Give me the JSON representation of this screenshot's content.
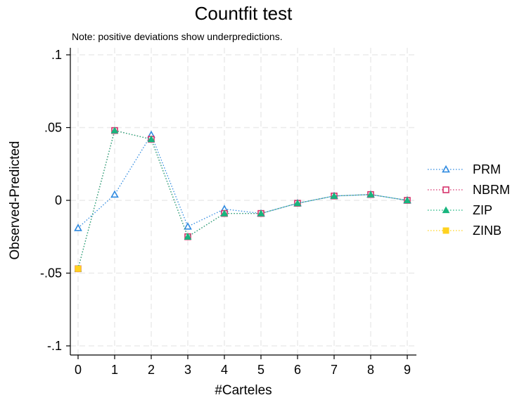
{
  "chart_data": {
    "type": "line",
    "title": "Countfit test",
    "note": "Note: positive deviations show underpredictions.",
    "xlabel": "#Carteles",
    "ylabel": "Observed-Predicted",
    "xlim": [
      0,
      9
    ],
    "ylim": [
      -0.1,
      0.1
    ],
    "x_ticks": [
      {
        "v": 0,
        "label": "0"
      },
      {
        "v": 1,
        "label": "1"
      },
      {
        "v": 2,
        "label": "2"
      },
      {
        "v": 3,
        "label": "3"
      },
      {
        "v": 4,
        "label": "4"
      },
      {
        "v": 5,
        "label": "5"
      },
      {
        "v": 6,
        "label": "6"
      },
      {
        "v": 7,
        "label": "7"
      },
      {
        "v": 8,
        "label": "8"
      },
      {
        "v": 9,
        "label": "9"
      }
    ],
    "y_ticks": [
      {
        "v": 0.1,
        "label": ".1"
      },
      {
        "v": 0.05,
        "label": ".05"
      },
      {
        "v": 0,
        "label": "0"
      },
      {
        "v": -0.05,
        "label": "-.05"
      },
      {
        "v": -0.1,
        "label": "-.1"
      }
    ],
    "grid": true,
    "legend": {
      "position": "right"
    },
    "x": [
      0,
      1,
      2,
      3,
      4,
      5,
      6,
      7,
      8,
      9
    ],
    "series": [
      {
        "name": "PRM",
        "color": "#2f8ae0",
        "marker": "triangle-hollow",
        "values": [
          -0.019,
          0.004,
          0.045,
          -0.018,
          -0.006,
          -0.009,
          -0.002,
          0.003,
          0.004,
          0.0
        ]
      },
      {
        "name": "NBRM",
        "color": "#d6336c",
        "marker": "square-hollow",
        "values": [
          -0.047,
          0.048,
          0.042,
          -0.025,
          -0.009,
          -0.009,
          -0.002,
          0.003,
          0.004,
          0.0
        ]
      },
      {
        "name": "ZIP",
        "color": "#18b57e",
        "marker": "triangle-filled",
        "values": [
          -0.047,
          0.048,
          0.042,
          -0.025,
          -0.009,
          -0.009,
          -0.002,
          0.003,
          0.004,
          0.0
        ]
      },
      {
        "name": "ZINB",
        "color": "#ffd21f",
        "marker": "square-filled",
        "values": [
          -0.047,
          null,
          null,
          null,
          null,
          null,
          null,
          null,
          null,
          null
        ]
      }
    ]
  }
}
